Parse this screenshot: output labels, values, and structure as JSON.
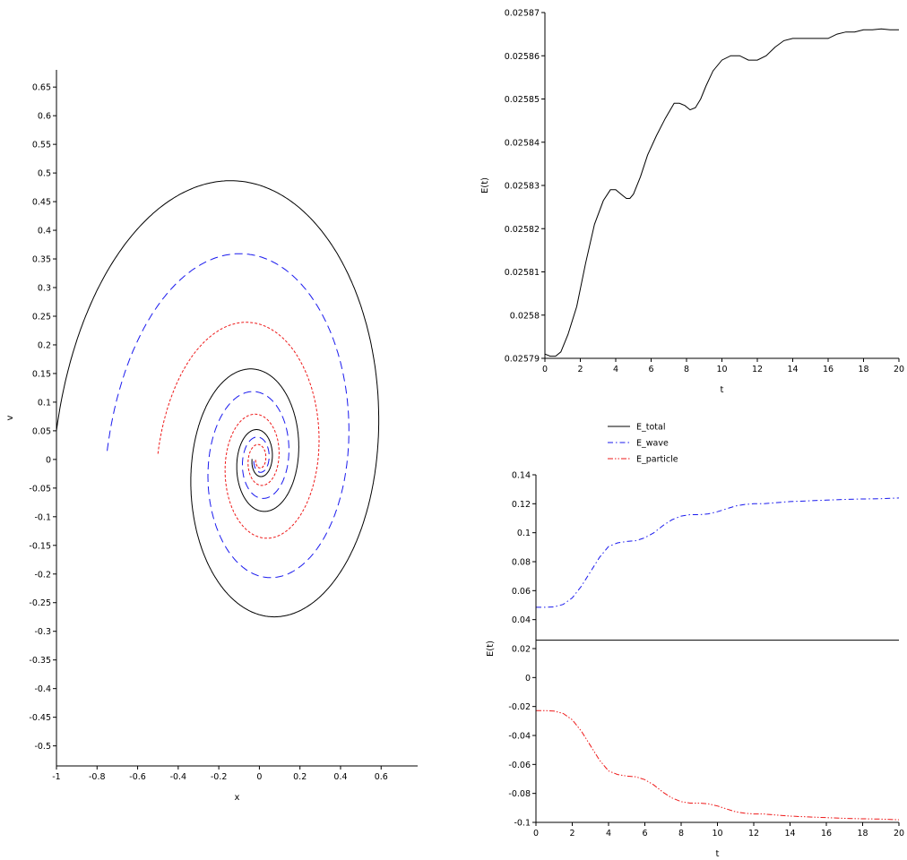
{
  "chart_data": [
    {
      "type": "line",
      "title": "",
      "xlabel": "x",
      "ylabel": "v",
      "xlim": [
        -1,
        0.78
      ],
      "ylim": [
        -0.535,
        0.68
      ],
      "xticks": [
        "-1",
        "-0.8",
        "-0.6",
        "-0.4",
        "-0.2",
        "0",
        "0.2",
        "0.4",
        "0.6"
      ],
      "yticks": [
        "0.65",
        "0.6",
        "0.55",
        "0.5",
        "0.45",
        "0.4",
        "0.35",
        "0.3",
        "0.25",
        "0.2",
        "0.15",
        "0.1",
        "0.05",
        "0",
        "-0.05",
        "-0.1",
        "-0.15",
        "-0.2",
        "-0.25",
        "-0.3",
        "-0.35",
        "-0.4",
        "-0.45",
        "-0.5"
      ],
      "grid": false,
      "series": [
        {
          "color": "#000000",
          "dash": "solid",
          "start": [
            -1,
            0.03
          ],
          "decay": 0.33,
          "turns": 3.0
        },
        {
          "color": "#1a1aee",
          "dash": "long-dash",
          "start": [
            -0.75,
            0
          ],
          "decay": 0.33,
          "turns": 3.0
        },
        {
          "color": "#ee1a1a",
          "dash": "dotted",
          "start": [
            -0.5,
            0
          ],
          "decay": 0.33,
          "turns": 3.0
        }
      ]
    },
    {
      "type": "line",
      "title": "",
      "xlabel": "t",
      "ylabel": "E(t)",
      "xlim": [
        0,
        20
      ],
      "ylim": [
        0.02579,
        0.02587
      ],
      "xticks": [
        "0",
        "2",
        "4",
        "6",
        "8",
        "10",
        "12",
        "14",
        "16",
        "18",
        "20"
      ],
      "yticks": [
        "0.02587",
        "0.02586",
        "0.02585",
        "0.02584",
        "0.02583",
        "0.02582",
        "0.02581",
        "0.0258",
        "0.02579"
      ],
      "grid": false,
      "series": [
        {
          "color": "#000000",
          "x": [
            0,
            0.3,
            0.6,
            0.9,
            1.3,
            1.8,
            2.3,
            2.8,
            3.3,
            3.7,
            4.0,
            4.3,
            4.6,
            4.8,
            5.0,
            5.4,
            5.8,
            6.3,
            6.8,
            7.3,
            7.6,
            7.9,
            8.2,
            8.5,
            8.8,
            9.1,
            9.5,
            10.0,
            10.5,
            11.0,
            11.5,
            12.0,
            12.5,
            13.0,
            13.5,
            14.0,
            14.5,
            15.0,
            15.5,
            16.0,
            16.5,
            17.0,
            17.5,
            18.0,
            18.5,
            19.0,
            19.5,
            20
          ],
          "y": [
            0.025791,
            0.0257905,
            0.0257905,
            0.0257915,
            0.0257955,
            0.025802,
            0.025812,
            0.025821,
            0.0258265,
            0.025829,
            0.025829,
            0.025828,
            0.025827,
            0.025827,
            0.025828,
            0.025832,
            0.025837,
            0.0258415,
            0.0258455,
            0.025849,
            0.025849,
            0.0258485,
            0.0258475,
            0.025848,
            0.02585,
            0.025853,
            0.0258565,
            0.025859,
            0.02586,
            0.02586,
            0.025859,
            0.025859,
            0.02586,
            0.025862,
            0.0258635,
            0.025864,
            0.025864,
            0.025864,
            0.025864,
            0.025864,
            0.025865,
            0.0258655,
            0.0258655,
            0.025866,
            0.025866,
            0.0258662,
            0.025866,
            0.025866
          ]
        }
      ]
    },
    {
      "type": "line",
      "title": "",
      "xlabel": "t",
      "ylabel": "E(t)",
      "xlim": [
        0,
        20
      ],
      "ylim": [
        -0.1,
        0.14
      ],
      "xticks": [
        "0",
        "2",
        "4",
        "6",
        "8",
        "10",
        "12",
        "14",
        "16",
        "18",
        "20"
      ],
      "yticks": [
        "0.14",
        "0.12",
        "0.1",
        "0.08",
        "0.06",
        "0.04",
        "0.02",
        "0",
        "-0.02",
        "-0.04",
        "-0.06",
        "-0.08",
        "-0.1"
      ],
      "grid": false,
      "legend": {
        "placement": "top",
        "entries": [
          "E_total",
          "E_wave",
          "E_particle"
        ]
      },
      "series": [
        {
          "name": "E_total",
          "color": "#000000",
          "dash": "solid",
          "x": [
            0,
            20
          ],
          "y": [
            0.0258,
            0.0258
          ]
        },
        {
          "name": "E_wave",
          "color": "#1a1aee",
          "dash": "dash-dot",
          "x": [
            0,
            0.5,
            1.0,
            1.5,
            2.0,
            2.5,
            3.0,
            3.5,
            4.0,
            4.5,
            5.0,
            5.5,
            6.0,
            6.5,
            7.0,
            7.5,
            8.0,
            8.5,
            9.0,
            9.5,
            10.0,
            10.5,
            11.0,
            11.5,
            12.0,
            12.5,
            13.0,
            13.5,
            14.0,
            15.0,
            16.0,
            17.0,
            18.0,
            19.0,
            20
          ],
          "y": [
            0.0485,
            0.0485,
            0.0488,
            0.0505,
            0.055,
            0.063,
            0.073,
            0.083,
            0.0905,
            0.093,
            0.094,
            0.0945,
            0.0965,
            0.1,
            0.105,
            0.109,
            0.1115,
            0.1125,
            0.1125,
            0.113,
            0.1145,
            0.1165,
            0.1185,
            0.1195,
            0.12,
            0.12,
            0.1205,
            0.121,
            0.1215,
            0.122,
            0.1225,
            0.123,
            0.1233,
            0.1235,
            0.124
          ]
        },
        {
          "name": "E_particle",
          "color": "#ee1a1a",
          "dash": "dash-dot-dot",
          "x": [
            0,
            0.5,
            1.0,
            1.5,
            2.0,
            2.5,
            3.0,
            3.5,
            4.0,
            4.5,
            5.0,
            5.5,
            6.0,
            6.5,
            7.0,
            7.5,
            8.0,
            8.5,
            9.0,
            9.5,
            10.0,
            10.5,
            11.0,
            11.5,
            12.0,
            12.5,
            13.0,
            13.5,
            14.0,
            15.0,
            16.0,
            17.0,
            18.0,
            19.0,
            20
          ],
          "y": [
            -0.0228,
            -0.0228,
            -0.0232,
            -0.0248,
            -0.0292,
            -0.037,
            -0.047,
            -0.057,
            -0.0645,
            -0.067,
            -0.068,
            -0.0685,
            -0.0705,
            -0.0742,
            -0.0792,
            -0.0832,
            -0.0857,
            -0.0867,
            -0.0867,
            -0.0872,
            -0.0887,
            -0.0907,
            -0.0927,
            -0.0937,
            -0.0942,
            -0.0942,
            -0.0947,
            -0.0952,
            -0.0957,
            -0.0962,
            -0.0967,
            -0.0972,
            -0.0975,
            -0.0977,
            -0.0982
          ]
        }
      ]
    }
  ]
}
